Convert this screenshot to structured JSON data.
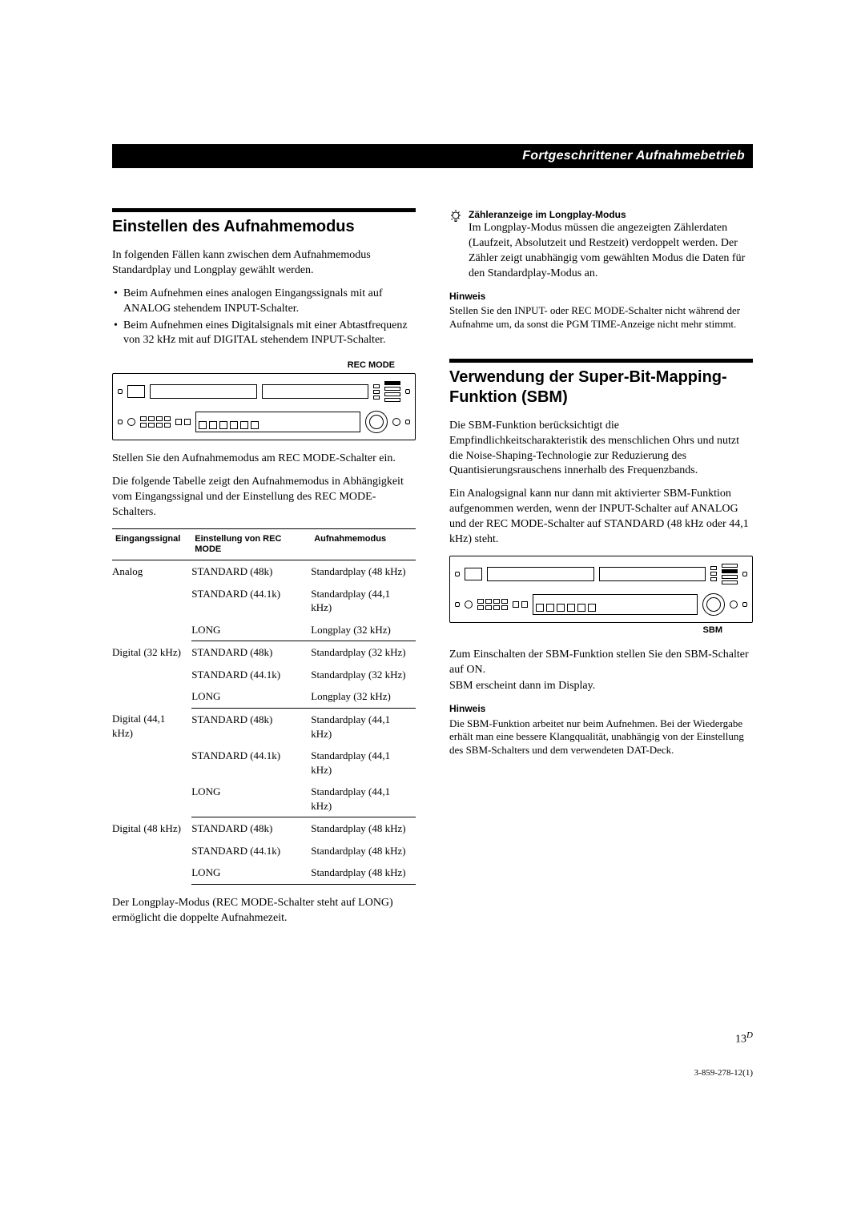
{
  "section_header": "Fortgeschrittener Aufnahmebetrieb",
  "left": {
    "title": "Einstellen des Aufnahmemodus",
    "intro": "In folgenden Fällen kann zwischen dem Aufnahmemodus Standardplay und Longplay gewählt werden.",
    "bullets": [
      "Beim Aufnehmen eines analogen Eingangssignals mit auf ANALOG stehendem INPUT-Schalter.",
      "Beim Aufnehmen eines Digitalsignals mit einer Abtastfrequenz von 32 kHz mit auf DIGITAL stehendem INPUT-Schalter."
    ],
    "device_label": "REC MODE",
    "after_device": "Stellen Sie den Aufnahmemodus am REC MODE-Schalter ein.",
    "table_intro": "Die folgende Tabelle zeigt den Aufnahmemodus in Abhängigkeit vom Eingangssignal und der Einstellung des REC MODE-Schalters.",
    "table": {
      "headers": [
        "Eingangssignal",
        "Einstellung von REC MODE",
        "Aufnahmemodus"
      ],
      "groups": [
        {
          "signal": "Analog",
          "rows": [
            [
              "STANDARD (48k)",
              "Standardplay (48 kHz)"
            ],
            [
              "STANDARD (44.1k)",
              "Standardplay (44,1 kHz)"
            ],
            [
              "LONG",
              "Longplay (32 kHz)"
            ]
          ]
        },
        {
          "signal": "Digital (32 kHz)",
          "rows": [
            [
              "STANDARD (48k)",
              "Standardplay (32 kHz)"
            ],
            [
              "STANDARD (44.1k)",
              "Standardplay (32 kHz)"
            ],
            [
              "LONG",
              "Longplay (32 kHz)"
            ]
          ]
        },
        {
          "signal": "Digital (44,1 kHz)",
          "rows": [
            [
              "STANDARD (48k)",
              "Standardplay (44,1 kHz)"
            ],
            [
              "STANDARD (44.1k)",
              "Standardplay (44,1 kHz)"
            ],
            [
              "LONG",
              "Standardplay (44,1 kHz)"
            ]
          ]
        },
        {
          "signal": "Digital (48 kHz)",
          "rows": [
            [
              "STANDARD (48k)",
              "Standardplay (48 kHz)"
            ],
            [
              "STANDARD (44.1k)",
              "Standardplay (48 kHz)"
            ],
            [
              "LONG",
              "Standardplay (48 kHz)"
            ]
          ]
        }
      ]
    },
    "after_table": "Der Longplay-Modus (REC MODE-Schalter steht auf LONG) ermöglicht die doppelte Aufnahmezeit."
  },
  "right": {
    "tip_title": "Zähleranzeige im Longplay-Modus",
    "tip_body": "Im Longplay-Modus müssen die angezeigten Zählerdaten (Laufzeit, Absolutzeit und Restzeit) verdoppelt werden. Der Zähler zeigt unabhängig vom gewählten Modus die Daten für den Standardplay-Modus an.",
    "hinweis1_title": "Hinweis",
    "hinweis1_body": "Stellen Sie den INPUT- oder REC MODE-Schalter nicht während der Aufnahme um, da sonst die PGM TIME-Anzeige nicht mehr stimmt.",
    "title2": "Verwendung der Super-Bit-Mapping-Funktion (SBM)",
    "sbm_p1": "Die SBM-Funktion berücksichtigt die Empfindlichkeitscharakteristik des menschlichen Ohrs und nutzt die Noise-Shaping-Technologie zur Reduzierung des Quantisierungsrauschens innerhalb des Frequenzbands.",
    "sbm_p2": "Ein Analogsignal kann nur dann mit aktivierter SBM-Funktion aufgenommen werden, wenn der INPUT-Schalter auf ANALOG und der REC MODE-Schalter auf STANDARD (48 kHz oder 44,1 kHz) steht.",
    "device_label": "SBM",
    "sbm_after1": "Zum Einschalten der SBM-Funktion stellen Sie den SBM-Schalter auf ON.",
    "sbm_after2": "SBM erscheint dann im Display.",
    "hinweis2_title": "Hinweis",
    "hinweis2_body": "Die SBM-Funktion arbeitet nur beim Aufnehmen. Bei der Wiedergabe erhält man eine bessere Klangqualität, unabhängig von der Einstellung des SBM-Schalters und dem verwendeten DAT-Deck."
  },
  "footer": {
    "page": "13",
    "sup": "D",
    "doc": "3-859-278-12(1)"
  },
  "colors": {
    "text": "#000000",
    "bg": "#ffffff"
  }
}
